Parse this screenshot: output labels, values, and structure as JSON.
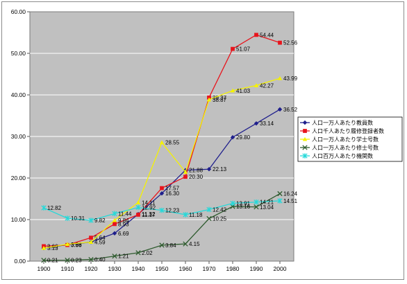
{
  "chart_data": {
    "type": "line",
    "title": "",
    "xlabel": "",
    "ylabel": "",
    "x": [
      1900,
      1910,
      1920,
      1930,
      1940,
      1950,
      1960,
      1970,
      1980,
      1990,
      2000
    ],
    "x_tick_labels": [
      "1900",
      "1910",
      "1920",
      "1930",
      "1940",
      "1950",
      "1960",
      "1970",
      "1980",
      "1990",
      "2000"
    ],
    "y_tick_labels": [
      "0.00",
      "10.00",
      "20.00",
      "30.00",
      "40.00",
      "50.00",
      "60.00"
    ],
    "ylim": [
      0,
      60
    ],
    "grid": "horizontal",
    "legend_position": "right",
    "plot_background": "#c0c0c0",
    "series": [
      {
        "name": "人口一万人あたり教員数",
        "color": "#1f1f8c",
        "marker": "diamond",
        "values": [
          3.13,
          3.96,
          4.59,
          6.69,
          11.32,
          16.3,
          21.88,
          22.13,
          29.8,
          33.14,
          36.52
        ],
        "labels": [
          "3.13",
          "3.96",
          "4.59",
          "6.69",
          "11.32",
          "16.30",
          "21.88",
          "22.13",
          "29.80",
          "33.14",
          "36.52"
        ]
      },
      {
        "name": "人口千人あたり履修登録者数",
        "color": "#e8141c",
        "marker": "square",
        "values": [
          3.6,
          3.88,
          5.64,
          8.93,
          11.17,
          17.57,
          20.3,
          39.37,
          51.07,
          54.44,
          52.56
        ],
        "labels": [
          "3.60",
          "3.88",
          "5.64",
          "8.93",
          "11.17",
          "17.57",
          "20.30",
          "39.37",
          "51.07",
          "54.44",
          "52.56"
        ]
      },
      {
        "name": "人口一万人あたり学士号数",
        "color": "#f5f200",
        "marker": "triangle",
        "values": [
          3.13,
          4.08,
          4.59,
          9.84,
          14.11,
          28.55,
          21.45,
          38.87,
          41.03,
          42.27,
          43.99
        ],
        "labels": [
          "",
          "",
          "",
          "9.84",
          "14.11",
          "28.55",
          "",
          "38.87",
          "41.03",
          "42.27",
          "43.99"
        ]
      },
      {
        "name": "人口一万人あたり修士号数",
        "color": "#2e5b2e",
        "marker": "x",
        "values": [
          0.21,
          0.23,
          0.4,
          1.21,
          2.02,
          3.84,
          4.15,
          10.25,
          13.16,
          13.04,
          16.24
        ],
        "labels": [
          "0.21",
          "0.23",
          "0.40",
          "1.21",
          "2.02",
          "3.84",
          "4.15",
          "10.25",
          "13.16",
          "13.04",
          "16.24"
        ]
      },
      {
        "name": "人口百万人あたり機関数",
        "color": "#26d9d9",
        "marker": "star",
        "values": [
          12.82,
          10.31,
          9.82,
          11.44,
          12.92,
          12.23,
          11.18,
          12.42,
          13.91,
          14.21,
          14.51
        ],
        "labels": [
          "12.82",
          "10.31",
          "9.82",
          "11.44",
          "12.92",
          "12.23",
          "11.18",
          "12.42",
          "13.91",
          "14.21",
          "14.51"
        ]
      }
    ]
  }
}
